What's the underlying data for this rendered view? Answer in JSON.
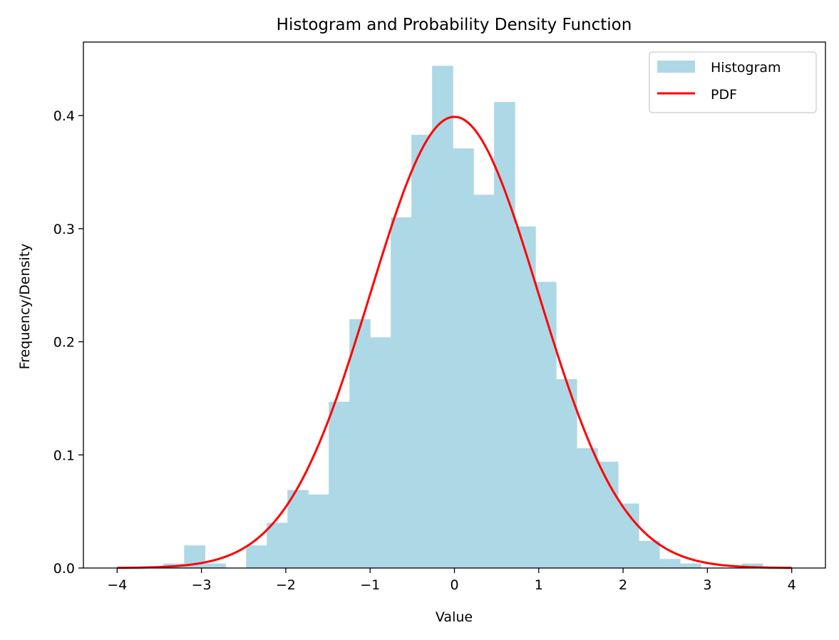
{
  "chart_data": {
    "type": "bar",
    "title": "Histogram and Probability Density Function",
    "xlabel": "Value",
    "ylabel": "Frequency/Density",
    "xlim": [
      -4.4,
      4.4
    ],
    "ylim": [
      0,
      0.465
    ],
    "grid": false,
    "legend_position": "top-right",
    "xticks": [
      {
        "value": -4,
        "label": "−4"
      },
      {
        "value": -3,
        "label": "−3"
      },
      {
        "value": -2,
        "label": "−2"
      },
      {
        "value": -1,
        "label": "−1"
      },
      {
        "value": 0,
        "label": "0"
      },
      {
        "value": 1,
        "label": "1"
      },
      {
        "value": 2,
        "label": "2"
      },
      {
        "value": 3,
        "label": "3"
      },
      {
        "value": 4,
        "label": "4"
      }
    ],
    "yticks": [
      {
        "value": 0.0,
        "label": "0.0"
      },
      {
        "value": 0.1,
        "label": "0.1"
      },
      {
        "value": 0.2,
        "label": "0.2"
      },
      {
        "value": 0.3,
        "label": "0.3"
      },
      {
        "value": 0.4,
        "label": "0.4"
      }
    ],
    "series": [
      {
        "name": "Histogram",
        "kind": "histogram",
        "color": "#add8e6",
        "bin_start": -3.45,
        "bin_width": 0.245,
        "values": [
          0.004,
          0.02,
          0.004,
          0.0,
          0.02,
          0.04,
          0.069,
          0.065,
          0.147,
          0.22,
          0.204,
          0.31,
          0.383,
          0.444,
          0.371,
          0.33,
          0.412,
          0.302,
          0.253,
          0.167,
          0.106,
          0.094,
          0.057,
          0.024,
          0.008,
          0.004,
          0.0,
          0.0,
          0.004
        ]
      },
      {
        "name": "PDF",
        "kind": "line",
        "color": "#ff0000",
        "function": "standard normal",
        "x_range": [
          -4,
          4
        ]
      }
    ]
  }
}
